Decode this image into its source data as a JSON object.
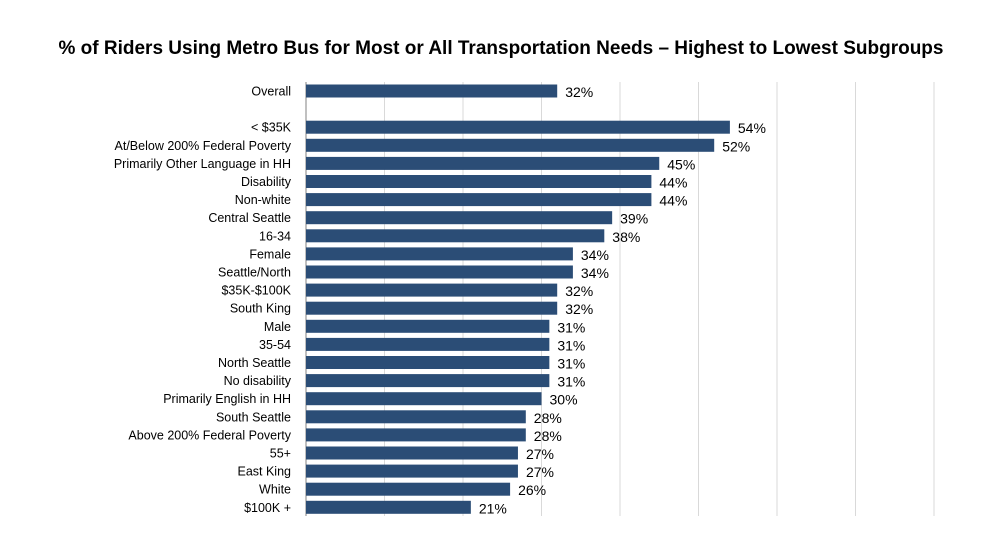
{
  "chart_data": {
    "type": "bar",
    "orientation": "horizontal",
    "title": "% of Riders Using Metro Bus for Most or All Transportation Needs – Highest to Lowest Subgroups",
    "xlim": [
      0,
      80
    ],
    "grid": true,
    "grid_step": 10,
    "bar_color": "#2b4d76",
    "categories": [
      "Overall",
      "",
      "< $35K",
      "At/Below 200% Federal Poverty",
      "Primarily Other Language in HH",
      "Disability",
      "Non-white",
      "Central Seattle",
      "16-34",
      "Female",
      "Seattle/North",
      "$35K-$100K",
      "South King",
      "Male",
      "35-54",
      "North Seattle",
      "No disability",
      "Primarily English in HH",
      "South Seattle",
      "Above 200% Federal Poverty",
      "55+",
      "East King",
      "White",
      "$100K +"
    ],
    "values": [
      32,
      null,
      54,
      52,
      45,
      44,
      44,
      39,
      38,
      34,
      34,
      32,
      32,
      31,
      31,
      31,
      31,
      30,
      28,
      28,
      27,
      27,
      26,
      21
    ],
    "labels": [
      "32%",
      "",
      "54%",
      "52%",
      "45%",
      "44%",
      "44%",
      "39%",
      "38%",
      "34%",
      "34%",
      "32%",
      "32%",
      "31%",
      "31%",
      "31%",
      "31%",
      "30%",
      "28%",
      "28%",
      "27%",
      "27%",
      "26%",
      "21%"
    ]
  }
}
